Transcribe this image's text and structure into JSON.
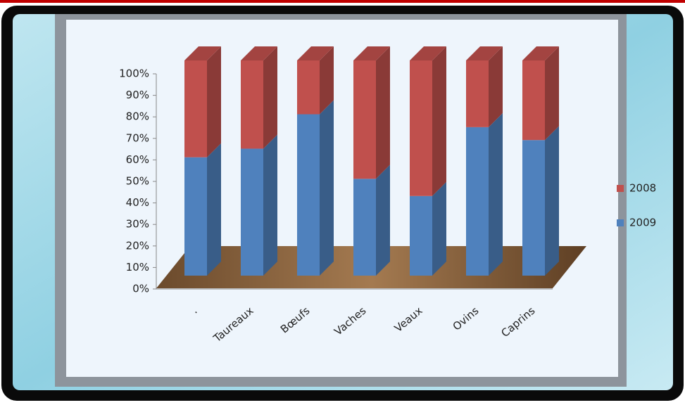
{
  "chart_data": {
    "type": "bar3d_stacked",
    "categories": [
      ".",
      "Taureaux",
      "Bœufs",
      "Vaches",
      "Veaux",
      "Ovins",
      "Caprins"
    ],
    "series": [
      {
        "name": "2009",
        "color": "#4f81bd",
        "values": [
          55,
          59,
          75,
          45,
          37,
          69,
          63
        ]
      },
      {
        "name": "2008",
        "color": "#c0504d",
        "values": [
          45,
          41,
          25,
          55,
          63,
          31,
          37
        ]
      }
    ],
    "ylim": [
      0,
      100
    ],
    "yticks": [
      {
        "value": 0,
        "label": "0%"
      },
      {
        "value": 10,
        "label": "10%"
      },
      {
        "value": 20,
        "label": "20%"
      },
      {
        "value": 30,
        "label": "30%"
      },
      {
        "value": 40,
        "label": "40%"
      },
      {
        "value": 50,
        "label": "50%"
      },
      {
        "value": 60,
        "label": "60%"
      },
      {
        "value": 70,
        "label": "70%"
      },
      {
        "value": 80,
        "label": "80%"
      },
      {
        "value": 90,
        "label": "90%"
      },
      {
        "value": 100,
        "label": "100%"
      }
    ]
  }
}
